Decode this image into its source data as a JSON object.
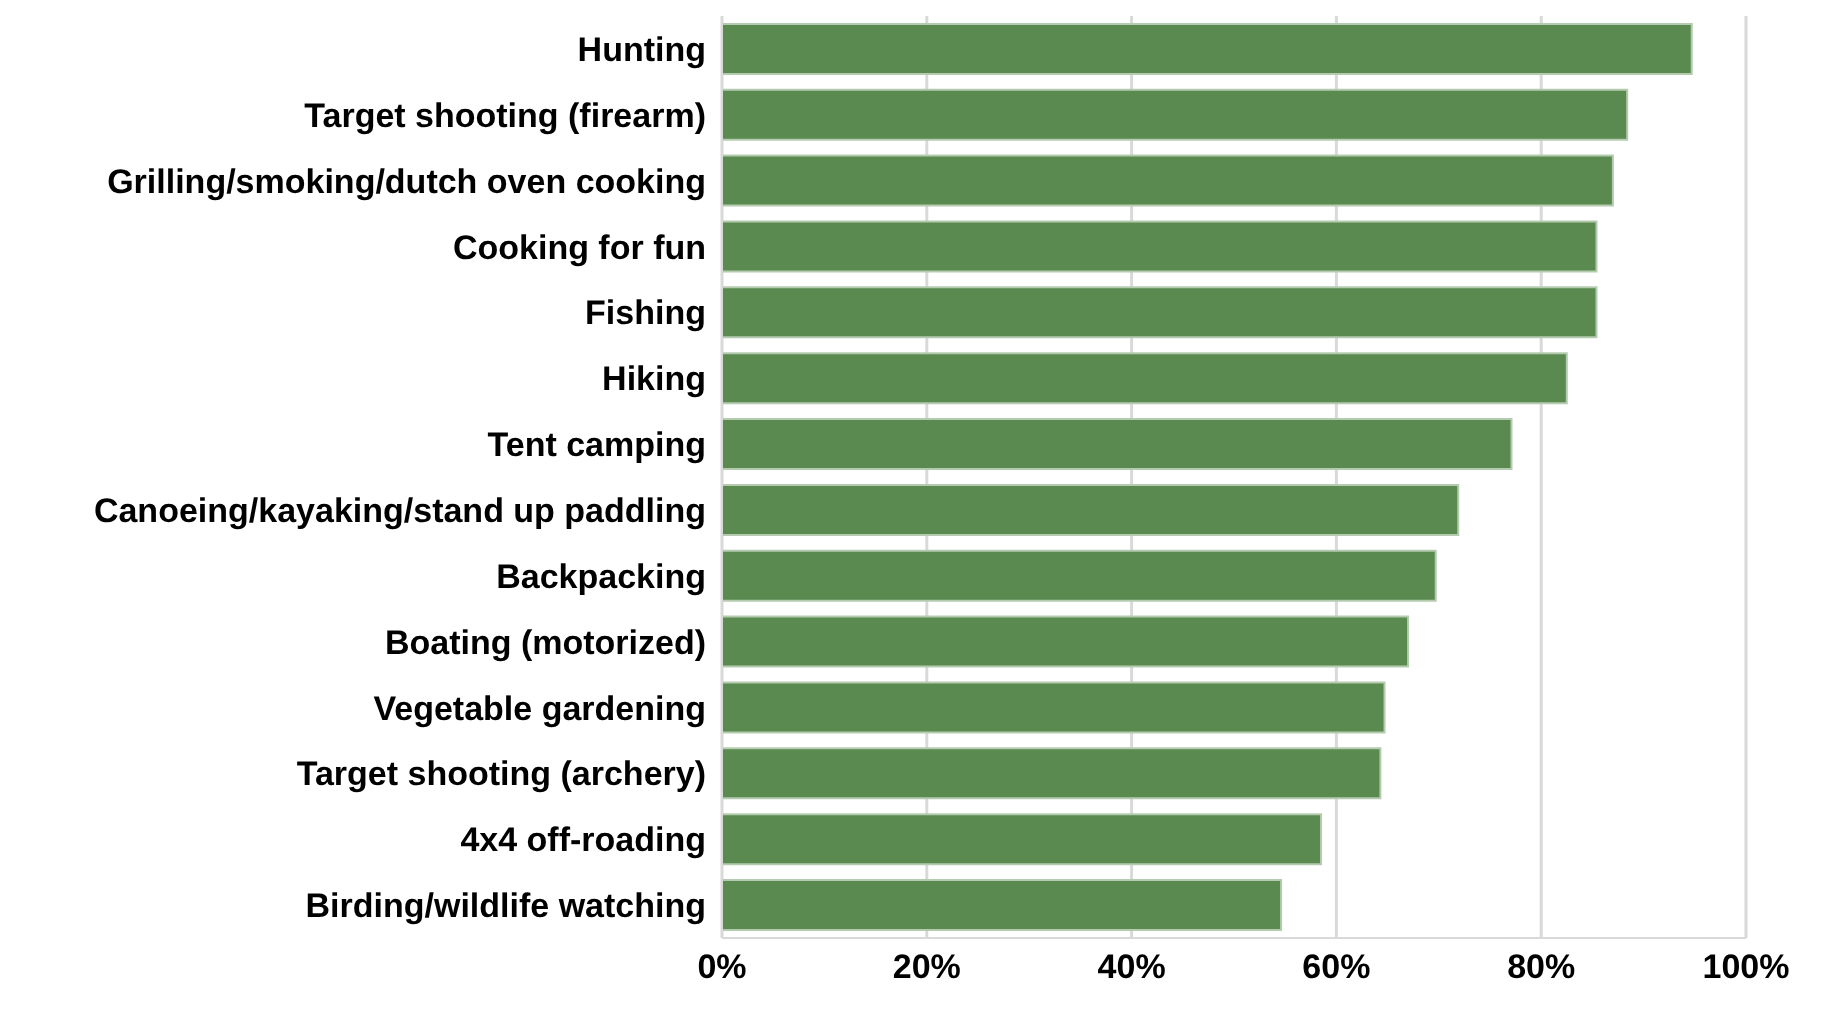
{
  "chart_data": {
    "type": "bar",
    "orientation": "horizontal",
    "categories": [
      "Hunting",
      "Target shooting (firearm)",
      "Grilling/smoking/dutch oven cooking",
      "Cooking for fun",
      "Fishing",
      "Hiking",
      "Tent camping",
      "Canoeing/kayaking/stand up paddling",
      "Backpacking",
      "Boating (motorized)",
      "Vegetable gardening",
      "Target shooting (archery)",
      "4x4 off-roading",
      "Birding/wildlife watching"
    ],
    "values": [
      94.7,
      88.4,
      87.0,
      85.4,
      85.4,
      82.5,
      77.1,
      71.9,
      69.7,
      67.0,
      64.7,
      64.3,
      58.5,
      54.6
    ],
    "color": "#5a8a50",
    "xlim": [
      0,
      100
    ],
    "xticks": [
      {
        "value": 0,
        "label": "0%"
      },
      {
        "value": 20,
        "label": "20%"
      },
      {
        "value": 40,
        "label": "40%"
      },
      {
        "value": 60,
        "label": "60%"
      },
      {
        "value": 80,
        "label": "80%"
      },
      {
        "value": 100,
        "label": "100%"
      }
    ],
    "grid": "x"
  }
}
